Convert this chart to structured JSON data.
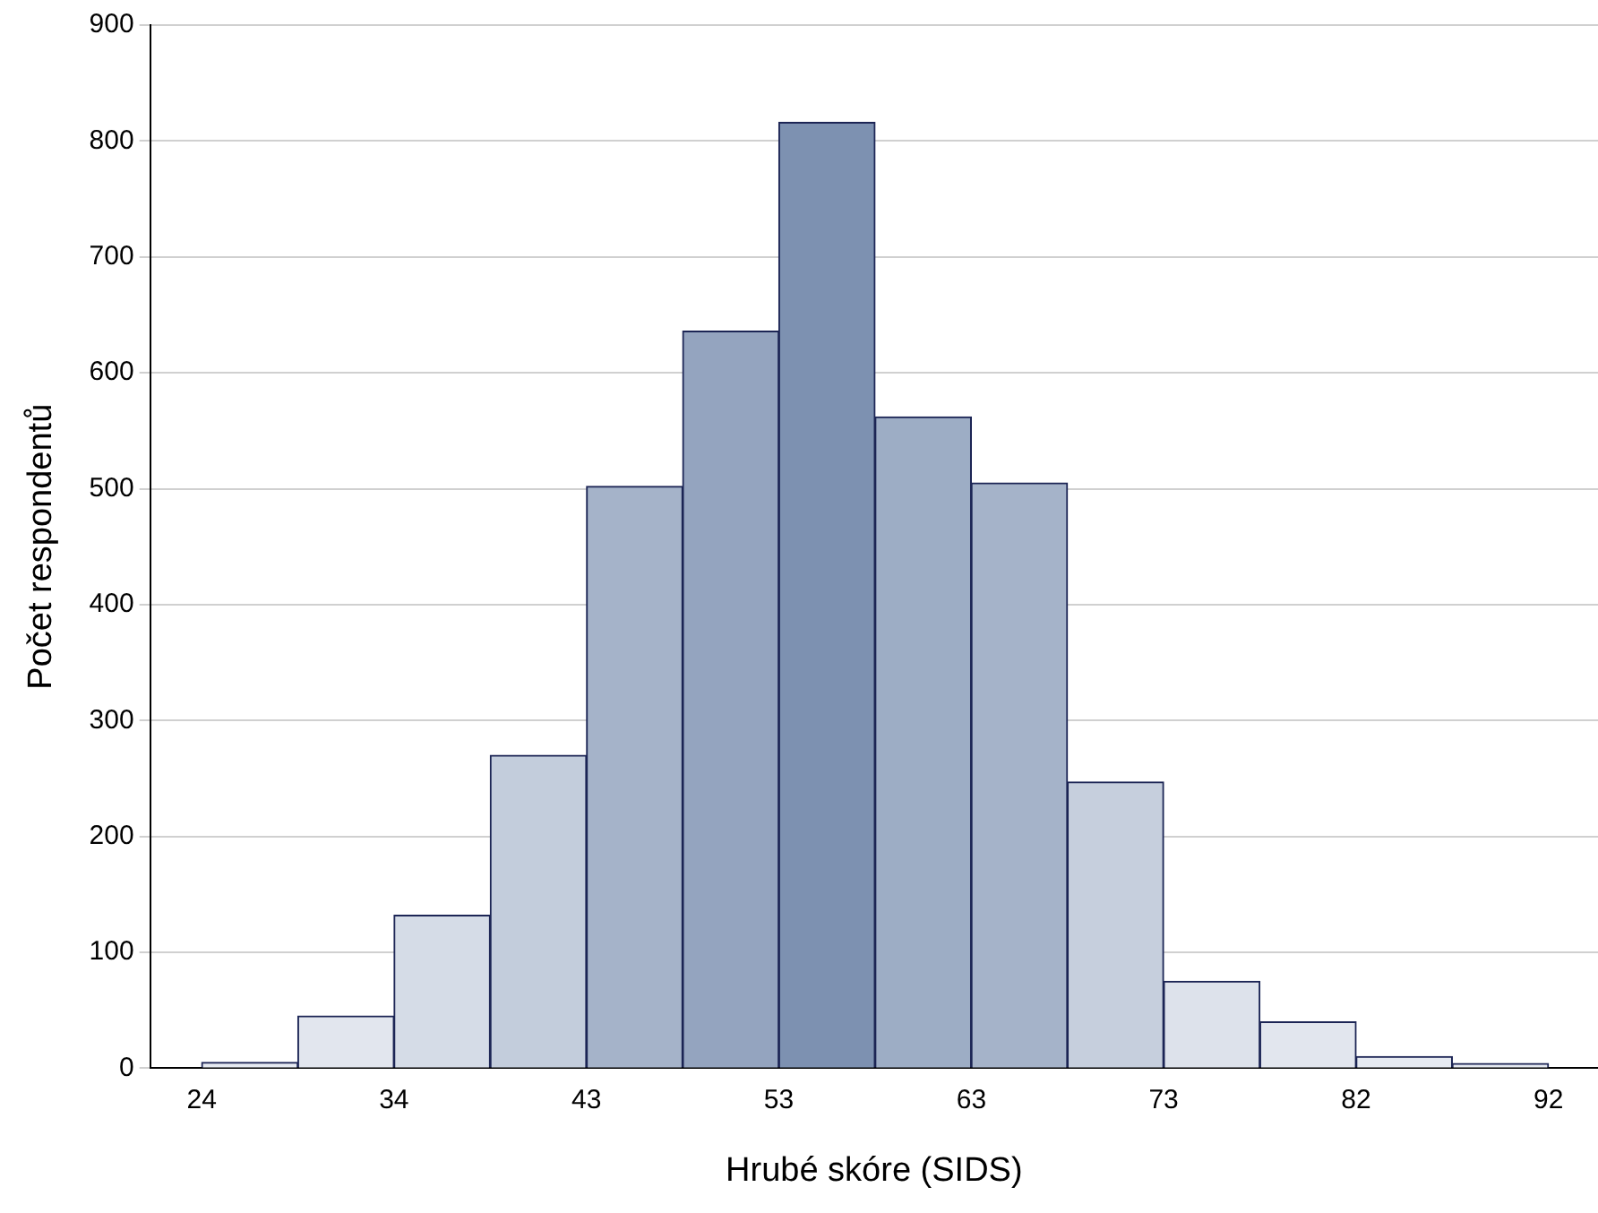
{
  "chart_data": {
    "type": "histogram",
    "xlabel": "Hrubé skóre (SIDS)",
    "ylabel": "Počet respondentů",
    "bins": [
      24,
      28.86,
      33.71,
      38.57,
      43.43,
      48.29,
      53.14,
      58,
      62.86,
      67.71,
      72.57,
      77.43,
      82.29,
      87.14,
      92
    ],
    "values": [
      5,
      45,
      132,
      270,
      502,
      636,
      816,
      562,
      505,
      247,
      75,
      40,
      10,
      4
    ],
    "colors": [
      "#e6eaf1",
      "#e2e6ee",
      "#d5dce7",
      "#c3cddc",
      "#a5b3c9",
      "#94a4bf",
      "#7d91b1",
      "#9dadc5",
      "#a5b3c9",
      "#c6cfdd",
      "#dde2eb",
      "#e2e6ee",
      "#e6eaf1",
      "#e6eaf1"
    ],
    "xlim": [
      21.4,
      94.5
    ],
    "xticks": [
      {
        "value": 24,
        "label": "24"
      },
      {
        "value": 33.71,
        "label": "34"
      },
      {
        "value": 43.43,
        "label": "43"
      },
      {
        "value": 53.14,
        "label": "53"
      },
      {
        "value": 62.86,
        "label": "63"
      },
      {
        "value": 72.57,
        "label": "73"
      },
      {
        "value": 82.29,
        "label": "82"
      },
      {
        "value": 92,
        "label": "92"
      }
    ],
    "ylim": [
      0,
      900
    ],
    "yticks": [
      0,
      100,
      200,
      300,
      400,
      500,
      600,
      700,
      800,
      900
    ],
    "grid": "y"
  }
}
